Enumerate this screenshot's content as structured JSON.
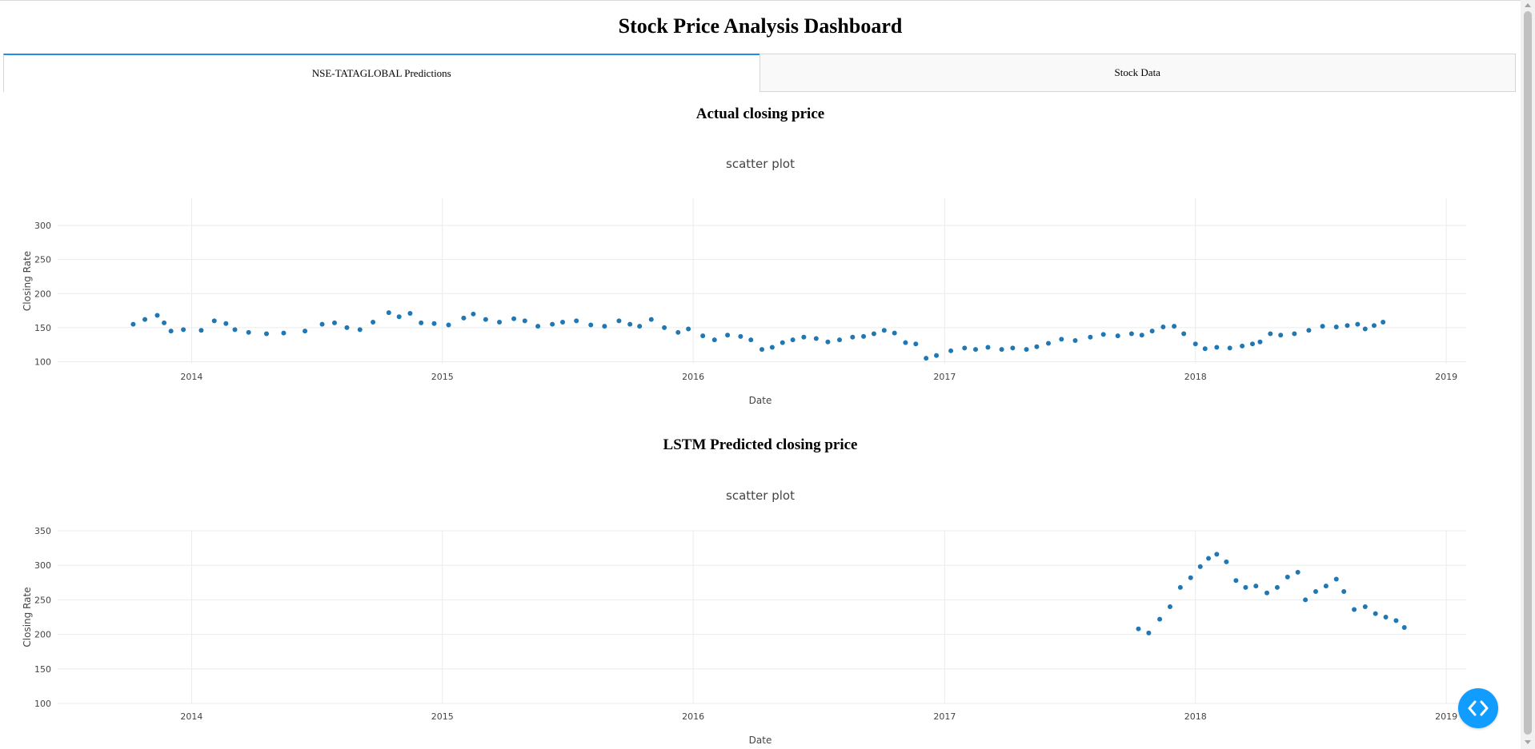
{
  "page": {
    "title": "Stock Price Analysis Dashboard"
  },
  "tabs": [
    {
      "label": "NSE-TATAGLOBAL Predictions",
      "active": true
    },
    {
      "label": "Stock Data",
      "active": false
    }
  ],
  "sections": {
    "actual_heading": "Actual closing price",
    "predicted_heading": "LSTM Predicted closing price"
  },
  "colors": {
    "marker": "#1f77b4",
    "tab_accent": "#1f8fe5",
    "fab": "#119dff"
  },
  "icons": {
    "fab": "code-brackets-icon"
  },
  "chart_data": [
    {
      "type": "scatter",
      "title": "scatter plot",
      "xlabel": "Date",
      "ylabel": "Closing Rate",
      "x_ticks": [
        "2014",
        "2015",
        "2016",
        "2017",
        "2018",
        "2019"
      ],
      "y_ticks": [
        100,
        150,
        200,
        250,
        300
      ],
      "xlim": [
        "2013-06-20",
        "2019-01-30"
      ],
      "ylim": [
        97,
        340
      ],
      "grid": true,
      "series": [
        {
          "marker_color": "#1f77b4",
          "points": [
            [
              "2013-10-08",
              155
            ],
            [
              "2013-10-25",
              162
            ],
            [
              "2013-11-12",
              168
            ],
            [
              "2013-11-22",
              157
            ],
            [
              "2013-12-02",
              145
            ],
            [
              "2013-12-20",
              147
            ],
            [
              "2014-01-15",
              146
            ],
            [
              "2014-02-03",
              160
            ],
            [
              "2014-02-20",
              156
            ],
            [
              "2014-03-05",
              147
            ],
            [
              "2014-03-25",
              143
            ],
            [
              "2014-04-20",
              141
            ],
            [
              "2014-05-15",
              142
            ],
            [
              "2014-06-15",
              145
            ],
            [
              "2014-07-10",
              155
            ],
            [
              "2014-07-28",
              157
            ],
            [
              "2014-08-15",
              150
            ],
            [
              "2014-09-03",
              147
            ],
            [
              "2014-09-22",
              158
            ],
            [
              "2014-10-15",
              172
            ],
            [
              "2014-10-30",
              166
            ],
            [
              "2014-11-15",
              171
            ],
            [
              "2014-12-01",
              157
            ],
            [
              "2014-12-20",
              156
            ],
            [
              "2015-01-10",
              154
            ],
            [
              "2015-02-01",
              164
            ],
            [
              "2015-02-15",
              170
            ],
            [
              "2015-03-05",
              162
            ],
            [
              "2015-03-25",
              158
            ],
            [
              "2015-04-15",
              163
            ],
            [
              "2015-05-01",
              160
            ],
            [
              "2015-05-20",
              152
            ],
            [
              "2015-06-10",
              155
            ],
            [
              "2015-06-25",
              158
            ],
            [
              "2015-07-15",
              160
            ],
            [
              "2015-08-05",
              154
            ],
            [
              "2015-08-25",
              152
            ],
            [
              "2015-09-15",
              160
            ],
            [
              "2015-10-01",
              155
            ],
            [
              "2015-10-15",
              152
            ],
            [
              "2015-11-01",
              162
            ],
            [
              "2015-11-20",
              150
            ],
            [
              "2015-12-10",
              143
            ],
            [
              "2015-12-25",
              148
            ],
            [
              "2016-01-15",
              138
            ],
            [
              "2016-02-01",
              132
            ],
            [
              "2016-02-20",
              139
            ],
            [
              "2016-03-10",
              137
            ],
            [
              "2016-03-25",
              132
            ],
            [
              "2016-04-10",
              118
            ],
            [
              "2016-04-25",
              121
            ],
            [
              "2016-05-10",
              128
            ],
            [
              "2016-05-25",
              132
            ],
            [
              "2016-06-10",
              136
            ],
            [
              "2016-06-28",
              134
            ],
            [
              "2016-07-15",
              129
            ],
            [
              "2016-08-01",
              132
            ],
            [
              "2016-08-20",
              136
            ],
            [
              "2016-09-05",
              137
            ],
            [
              "2016-09-20",
              141
            ],
            [
              "2016-10-05",
              146
            ],
            [
              "2016-10-20",
              142
            ],
            [
              "2016-11-05",
              128
            ],
            [
              "2016-11-20",
              126
            ],
            [
              "2016-12-05",
              105
            ],
            [
              "2016-12-20",
              109
            ],
            [
              "2017-01-10",
              116
            ],
            [
              "2017-01-30",
              120
            ],
            [
              "2017-02-15",
              118
            ],
            [
              "2017-03-05",
              121
            ],
            [
              "2017-03-25",
              118
            ],
            [
              "2017-04-10",
              120
            ],
            [
              "2017-04-30",
              118
            ],
            [
              "2017-05-15",
              122
            ],
            [
              "2017-06-01",
              127
            ],
            [
              "2017-06-20",
              133
            ],
            [
              "2017-07-10",
              131
            ],
            [
              "2017-08-01",
              136
            ],
            [
              "2017-08-20",
              140
            ],
            [
              "2017-09-10",
              138
            ],
            [
              "2017-09-30",
              141
            ],
            [
              "2017-10-15",
              139
            ],
            [
              "2017-10-30",
              145
            ],
            [
              "2017-11-15",
              151
            ],
            [
              "2017-12-01",
              152
            ],
            [
              "2017-12-15",
              141
            ],
            [
              "2018-01-01",
              126
            ],
            [
              "2018-01-15",
              119
            ],
            [
              "2018-02-01",
              121
            ],
            [
              "2018-02-20",
              120
            ],
            [
              "2018-03-10",
              123
            ],
            [
              "2018-03-25",
              126
            ],
            [
              "2018-04-05",
              129
            ],
            [
              "2018-04-20",
              141
            ],
            [
              "2018-05-05",
              139
            ],
            [
              "2018-05-25",
              141
            ],
            [
              "2018-06-15",
              146
            ],
            [
              "2018-07-05",
              152
            ],
            [
              "2018-07-25",
              151
            ],
            [
              "2018-08-10",
              153
            ],
            [
              "2018-08-25",
              155
            ],
            [
              "2018-09-05",
              148
            ],
            [
              "2018-09-18",
              153
            ],
            [
              "2018-10-01",
              158
            ]
          ]
        }
      ]
    },
    {
      "type": "scatter",
      "title": "scatter plot",
      "xlabel": "Date",
      "ylabel": "Closing Rate",
      "x_ticks": [
        "2014",
        "2015",
        "2016",
        "2017",
        "2018",
        "2019"
      ],
      "y_ticks": [
        100,
        150,
        200,
        250,
        300,
        350
      ],
      "xlim": [
        "2013-06-20",
        "2019-01-30"
      ],
      "ylim": [
        100,
        350
      ],
      "grid": true,
      "series": [
        {
          "marker_color": "#1f77b4",
          "points": [
            [
              "2017-10-10",
              208
            ],
            [
              "2017-10-25",
              202
            ],
            [
              "2017-11-10",
              222
            ],
            [
              "2017-11-25",
              240
            ],
            [
              "2017-12-10",
              268
            ],
            [
              "2017-12-25",
              282
            ],
            [
              "2018-01-08",
              298
            ],
            [
              "2018-01-20",
              310
            ],
            [
              "2018-02-01",
              316
            ],
            [
              "2018-02-15",
              305
            ],
            [
              "2018-03-01",
              278
            ],
            [
              "2018-03-15",
              268
            ],
            [
              "2018-03-30",
              270
            ],
            [
              "2018-04-15",
              260
            ],
            [
              "2018-04-30",
              268
            ],
            [
              "2018-05-15",
              283
            ],
            [
              "2018-05-30",
              290
            ],
            [
              "2018-06-10",
              250
            ],
            [
              "2018-06-25",
              262
            ],
            [
              "2018-07-10",
              270
            ],
            [
              "2018-07-25",
              280
            ],
            [
              "2018-08-05",
              262
            ],
            [
              "2018-08-20",
              236
            ],
            [
              "2018-09-05",
              240
            ],
            [
              "2018-09-20",
              230
            ],
            [
              "2018-10-05",
              225
            ],
            [
              "2018-10-20",
              220
            ],
            [
              "2018-11-01",
              210
            ]
          ]
        }
      ]
    }
  ]
}
